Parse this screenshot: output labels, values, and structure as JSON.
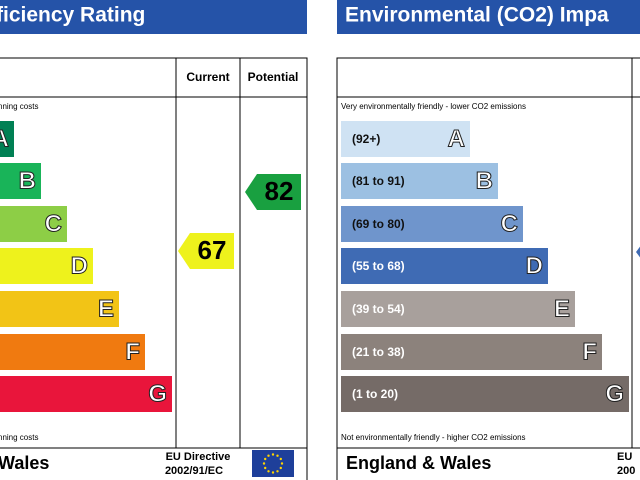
{
  "left": {
    "title": "ficiency Rating",
    "columns": [
      "Current",
      "Potential"
    ],
    "top_note": "nning costs",
    "bottom_note": "nning costs",
    "bands": [
      "A",
      "B",
      "C",
      "D",
      "E",
      "F",
      "G"
    ],
    "current": 67,
    "potential": 82,
    "footer": {
      "region": "Wales",
      "directive": [
        "EU Directive",
        "2002/91/EC"
      ]
    }
  },
  "right": {
    "title": "Environmental (CO2) Impa",
    "top_note": "Very environmentally friendly - lower CO2 emissions",
    "bottom_note": "Not environmentally friendly - higher CO2 emissions",
    "bands": [
      {
        "range": "(92+)",
        "letter": "A"
      },
      {
        "range": "(81 to 91)",
        "letter": "B"
      },
      {
        "range": "(69 to 80)",
        "letter": "C"
      },
      {
        "range": "(55 to 68)",
        "letter": "D"
      },
      {
        "range": "(39 to 54)",
        "letter": "E"
      },
      {
        "range": "(21 to 38)",
        "letter": "F"
      },
      {
        "range": "(1 to 20)",
        "letter": "G"
      }
    ],
    "footer": {
      "region": "England & Wales",
      "directive": [
        "EU",
        "200"
      ]
    }
  }
}
